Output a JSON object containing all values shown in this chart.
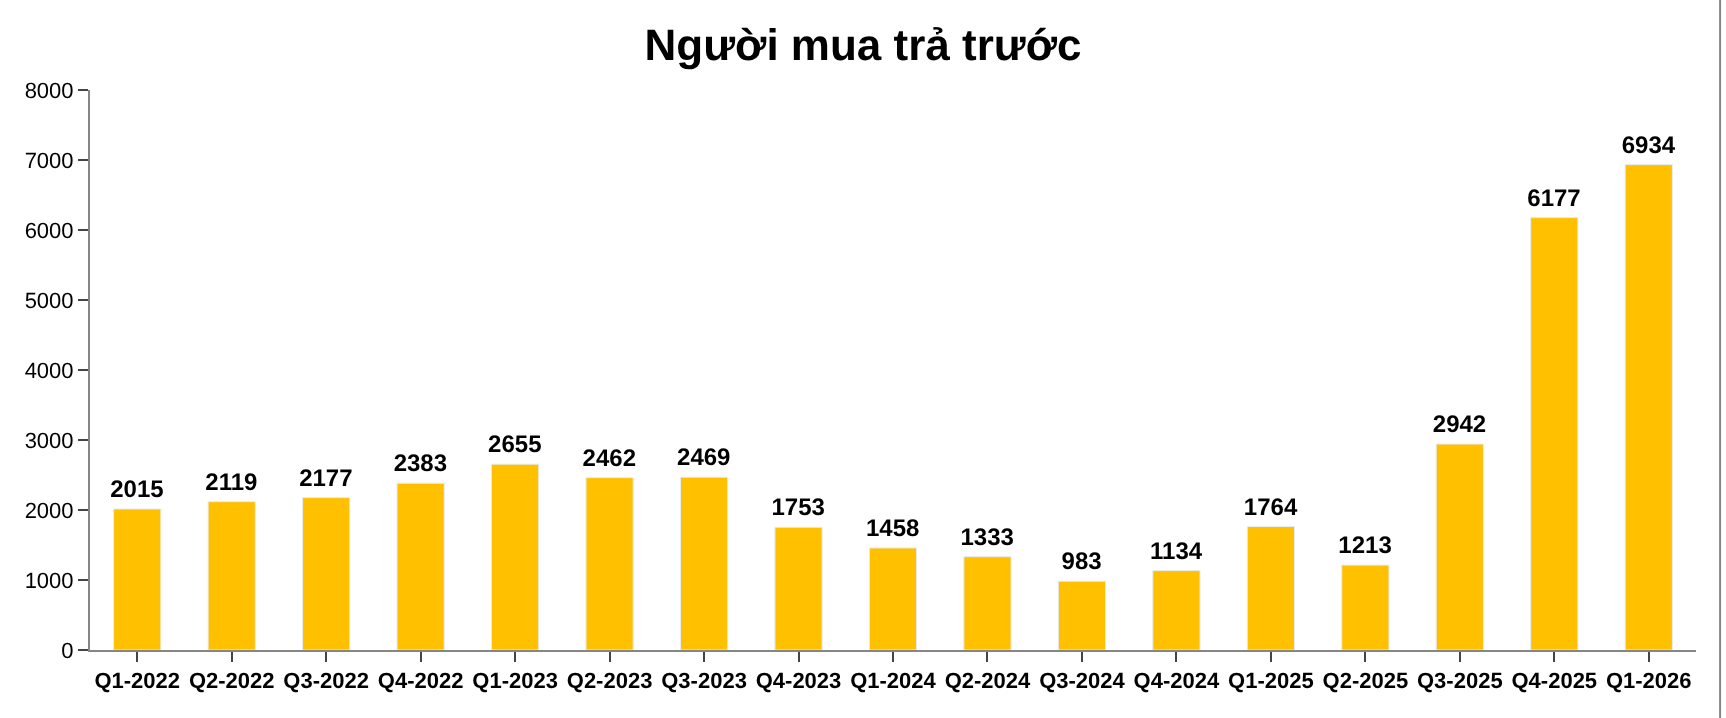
{
  "chart_data": {
    "type": "bar",
    "title": "Người mua trả trước",
    "categories": [
      "Q1-2022",
      "Q2-2022",
      "Q3-2022",
      "Q4-2022",
      "Q1-2023",
      "Q2-2023",
      "Q3-2023",
      "Q4-2023",
      "Q1-2024",
      "Q2-2024",
      "Q3-2024",
      "Q4-2024",
      "Q1-2025",
      "Q2-2025",
      "Q3-2025",
      "Q4-2025",
      "Q1-2026"
    ],
    "values": [
      2015,
      2119,
      2177,
      2383,
      2655,
      2462,
      2469,
      1753,
      1458,
      1333,
      983,
      1134,
      1764,
      1213,
      2942,
      6177,
      6934
    ],
    "color": "#ffc000",
    "ylim": [
      0,
      8000
    ],
    "yticks": [
      0,
      1000,
      2000,
      3000,
      4000,
      5000,
      6000,
      7000,
      8000
    ],
    "data_labels": true
  }
}
